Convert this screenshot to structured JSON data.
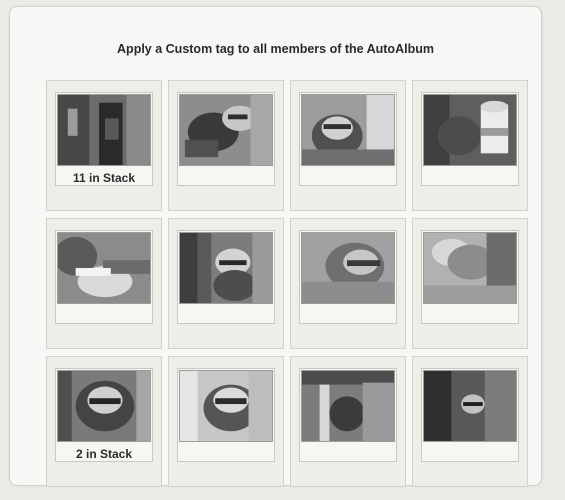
{
  "title": "Apply a Custom tag to all members of the AutoAlbum",
  "cells": [
    {
      "caption": "11 in Stack",
      "image": "raccoon-group-doorway"
    },
    {
      "caption": "",
      "image": "raccoon-leaning-forward"
    },
    {
      "caption": "",
      "image": "raccoon-face-closeup"
    },
    {
      "caption": "",
      "image": "raccoon-with-cup"
    },
    {
      "caption": "",
      "image": "hand-with-cup"
    },
    {
      "caption": "",
      "image": "raccoon-behind-tree"
    },
    {
      "caption": "",
      "image": "raccoon-blur-closeup"
    },
    {
      "caption": "",
      "image": "blurred-raccoon-motion"
    },
    {
      "caption": "2 in Stack",
      "image": "raccoon-looking-up"
    },
    {
      "caption": "",
      "image": "raccoon-face-portrait"
    },
    {
      "caption": "",
      "image": "raccoon-behind-shutter"
    },
    {
      "caption": "",
      "image": "raccoon-in-window"
    }
  ]
}
